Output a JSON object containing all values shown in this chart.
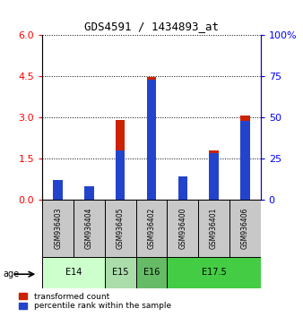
{
  "title": "GDS4591 / 1434893_at",
  "samples": [
    "GSM936403",
    "GSM936404",
    "GSM936405",
    "GSM936402",
    "GSM936400",
    "GSM936401",
    "GSM936406"
  ],
  "transformed_count": [
    0.15,
    0.05,
    2.9,
    4.45,
    0.18,
    1.8,
    3.05
  ],
  "percentile_rank_scaled": [
    12,
    8,
    30,
    73,
    14,
    28,
    48
  ],
  "age_groups": [
    {
      "label": "E14",
      "start": 0,
      "end": 1,
      "color": "#ccffcc"
    },
    {
      "label": "E15",
      "start": 2,
      "end": 2,
      "color": "#aaddaa"
    },
    {
      "label": "E16",
      "start": 3,
      "end": 3,
      "color": "#66bb66"
    },
    {
      "label": "E17.5",
      "start": 4,
      "end": 6,
      "color": "#44cc44"
    }
  ],
  "ylim_left": [
    0,
    6
  ],
  "ylim_right": [
    0,
    100
  ],
  "yticks_left": [
    0,
    1.5,
    3,
    4.5,
    6
  ],
  "yticks_right": [
    0,
    25,
    50,
    75,
    100
  ],
  "bar_color_red": "#cc2200",
  "bar_color_blue": "#2244cc",
  "bar_width": 0.12,
  "sample_box_color": "#c8c8c8",
  "legend_label_red": "transformed count",
  "legend_label_blue": "percentile rank within the sample"
}
